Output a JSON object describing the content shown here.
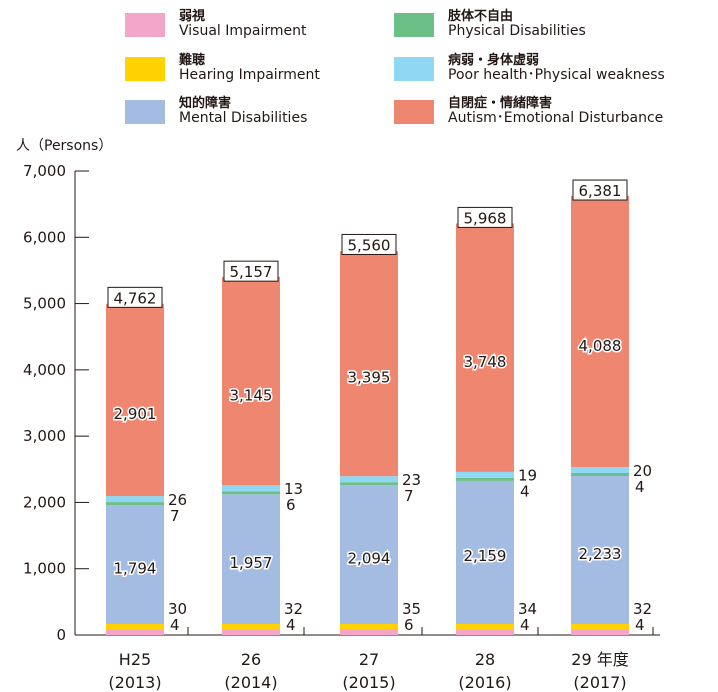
{
  "legend": [
    {
      "key": "visual",
      "ja": "弱視",
      "en": "Visual Impairment",
      "color": "#F4A6C8"
    },
    {
      "key": "physical",
      "ja": "肢体不自由",
      "en": "Physical Disabilities",
      "color": "#6BBF87"
    },
    {
      "key": "hearing",
      "ja": "難聴",
      "en": "Hearing Impairment",
      "color": "#FFD200"
    },
    {
      "key": "health",
      "ja": "病弱・身体虚弱",
      "en": "Poor health･Physical weakness",
      "color": "#8FD7F3"
    },
    {
      "key": "mental",
      "ja": "知的障害",
      "en": "Mental Disabilities",
      "color": "#A5BCE2"
    },
    {
      "key": "autism",
      "ja": "自閉症・情緒障害",
      "en": "Autism･Emotional Disturbance",
      "color": "#EE8670"
    }
  ],
  "chart_data": {
    "type": "bar",
    "stacked": true,
    "y_unit_label": "人（Persons）",
    "ylim": [
      0,
      7000
    ],
    "yticks": [
      "0",
      "1,000",
      "2,000",
      "3,000",
      "4,000",
      "5,000",
      "6,000",
      "7,000"
    ],
    "categories": [
      {
        "line1": "H25",
        "line2": "(2013)"
      },
      {
        "line1": "26",
        "line2": "(2014)"
      },
      {
        "line1": "27",
        "line2": "(2015)"
      },
      {
        "line1": "28",
        "line2": "(2016)"
      },
      {
        "line1": "29 年度",
        "line2": "(2017)"
      }
    ],
    "series": [
      {
        "name": "弱視",
        "color": "#F4A6C8",
        "values": [
          null,
          null,
          null,
          null,
          null
        ]
      },
      {
        "name": "難聴",
        "color": "#FFD200",
        "values": [
          30,
          32,
          35,
          34,
          32
        ]
      },
      {
        "name": "知的障害",
        "color": "#A5BCE2",
        "values": [
          1794,
          1957,
          2094,
          2159,
          2233
        ]
      },
      {
        "name": "肢体不自由",
        "color": "#6BBF87",
        "values": [
          7,
          6,
          7,
          4,
          4
        ]
      },
      {
        "name": "病弱・身体虚弱",
        "color": "#8FD7F3",
        "values": [
          26,
          13,
          23,
          19,
          20
        ]
      },
      {
        "name": "自閉症・情緒障害",
        "color": "#EE8670",
        "values": [
          2901,
          3145,
          3395,
          3748,
          4088
        ]
      }
    ],
    "visual_labels": [
      "4",
      "4",
      "6",
      "4",
      "4"
    ],
    "hearing_labels": [
      "30",
      "32",
      "35",
      "34",
      "32"
    ],
    "mental_labels": [
      "1,794",
      "1,957",
      "2,094",
      "2,159",
      "2,233"
    ],
    "physical_labels": [
      "7",
      "6",
      "7",
      "4",
      "4"
    ],
    "health_labels": [
      "26",
      "13",
      "23",
      "19",
      "20"
    ],
    "autism_labels": [
      "2,901",
      "3,145",
      "3,395",
      "3,748",
      "4,088"
    ],
    "totals": [
      4762,
      5157,
      5560,
      5968,
      6381
    ],
    "total_labels": [
      "4,762",
      "5,157",
      "5,560",
      "5,968",
      "6,381"
    ]
  }
}
